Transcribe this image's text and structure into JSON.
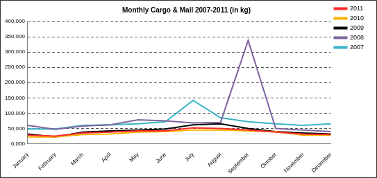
{
  "chart_data": {
    "type": "line",
    "title": "Monthly Cargo & Mail 2007-2011 (in kg)",
    "categories": [
      "January",
      "February",
      "March",
      "April",
      "May",
      "June",
      "July",
      "August",
      "September",
      "October",
      "November",
      "December"
    ],
    "series": [
      {
        "name": "2011",
        "color": "#ff2a2a",
        "values": [
          28000,
          25000,
          35000,
          38000,
          42000,
          42000,
          52000,
          50000,
          45000,
          38000,
          32000,
          30000
        ]
      },
      {
        "name": "2010",
        "color": "#f5b400",
        "values": [
          22000,
          22000,
          30000,
          32000,
          38000,
          40000,
          45000,
          45000,
          42000,
          40000,
          28000,
          28000
        ]
      },
      {
        "name": "2009",
        "color": "#000000",
        "values": [
          32000,
          22000,
          38000,
          42000,
          45000,
          48000,
          62000,
          65000,
          50000,
          40000,
          35000,
          32000
        ]
      },
      {
        "name": "2008",
        "color": "#7e649e",
        "values": [
          60000,
          47000,
          58000,
          62000,
          78000,
          75000,
          68000,
          70000,
          338000,
          50000,
          45000,
          40000
        ]
      },
      {
        "name": "2007",
        "color": "#36b4c8",
        "values": [
          48000,
          48000,
          60000,
          62000,
          65000,
          72000,
          142000,
          85000,
          72000,
          65000,
          60000,
          65000
        ]
      }
    ],
    "ylim": [
      0,
      400000
    ],
    "yticks": [
      {
        "value": 0,
        "label": "0,000"
      },
      {
        "value": 50000,
        "label": "50,000"
      },
      {
        "value": 100000,
        "label": "100,000"
      },
      {
        "value": 150000,
        "label": "150,000"
      },
      {
        "value": 200000,
        "label": "200,000"
      },
      {
        "value": 250000,
        "label": "250,000"
      },
      {
        "value": 300000,
        "label": "300,000"
      },
      {
        "value": 350000,
        "label": "350,000"
      },
      {
        "value": 400000,
        "label": "400,000"
      }
    ],
    "grid": true,
    "legend": "right",
    "marker": "none"
  }
}
